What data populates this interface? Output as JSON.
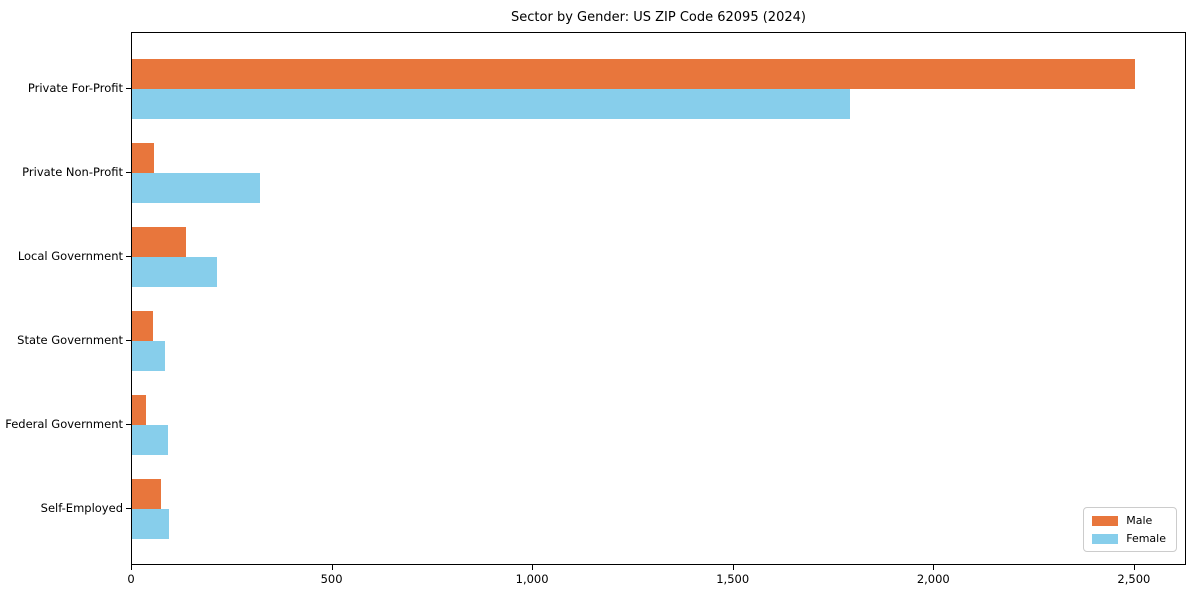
{
  "title": "Sector by Gender: US ZIP Code 62095 (2024)",
  "chart_data": {
    "type": "bar",
    "orientation": "horizontal",
    "title": "Sector by Gender: US ZIP Code 62095 (2024)",
    "categories": [
      "Private For-Profit",
      "Private Non-Profit",
      "Local Government",
      "State Government",
      "Federal Government",
      "Self-Employed"
    ],
    "series": [
      {
        "name": "Male",
        "color": "#E8763C",
        "values": [
          2500,
          55,
          135,
          52,
          35,
          72
        ]
      },
      {
        "name": "Female",
        "color": "#87CEEB",
        "values": [
          1790,
          320,
          212,
          82,
          90,
          92
        ]
      }
    ],
    "xlabel": "",
    "ylabel": "",
    "xlim": [
      0,
      2630
    ],
    "xticks": [
      0,
      500,
      1000,
      1500,
      2000,
      2500
    ],
    "xtick_labels": [
      "0",
      "500",
      "1,000",
      "1,500",
      "2,000",
      "2,500"
    ],
    "grid": false,
    "legend": {
      "position": "lower right",
      "entries": [
        {
          "label": "Male",
          "color": "#E8763C"
        },
        {
          "label": "Female",
          "color": "#87CEEB"
        }
      ]
    }
  }
}
